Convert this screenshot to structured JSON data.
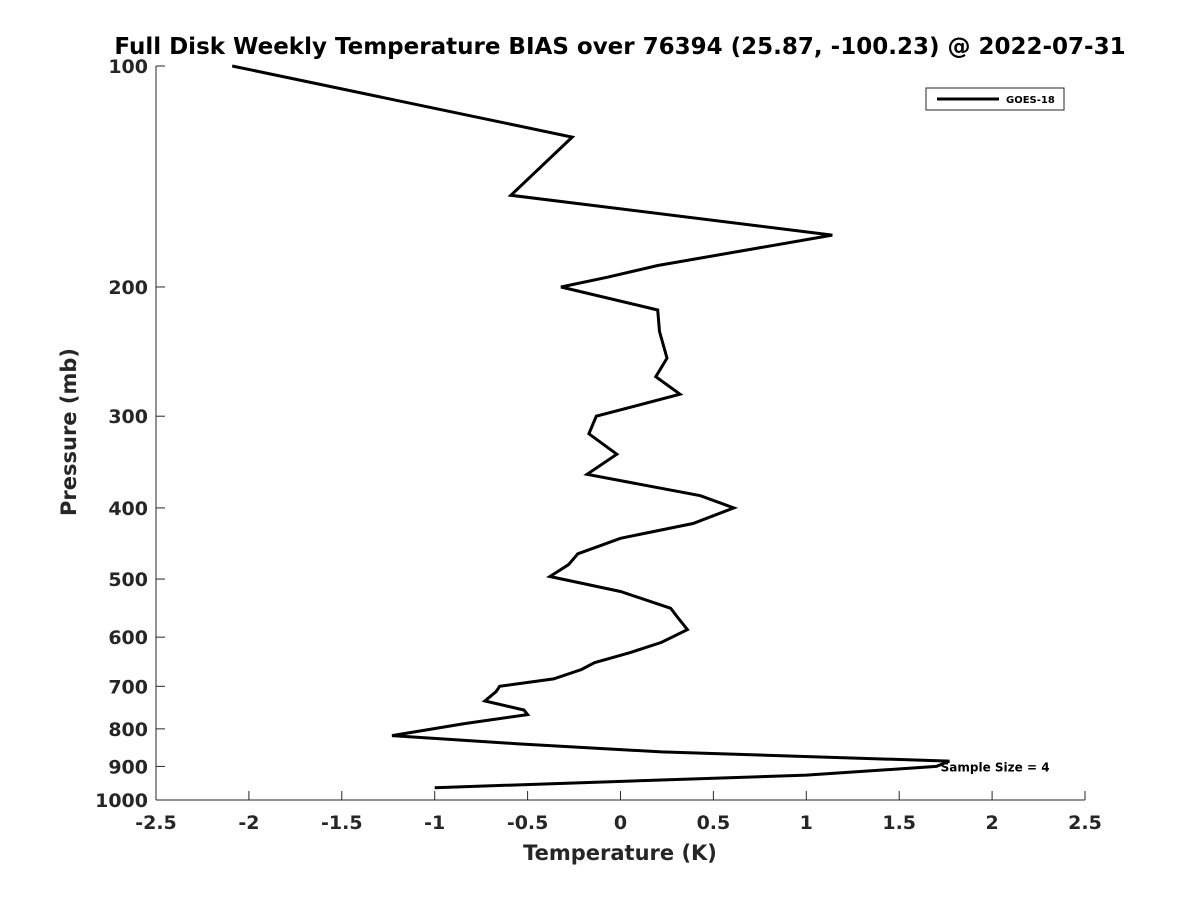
{
  "chart_data": {
    "type": "line",
    "title": "Full Disk Weekly Temperature BIAS over 76394 (25.87, -100.23) @ 2022-07-31",
    "xlabel": "Temperature (K)",
    "ylabel": "Pressure (mb)",
    "xlim": [
      -2.5,
      2.5
    ],
    "ylim": [
      1000,
      100
    ],
    "yscale": "log",
    "x_ticks": [
      -2.5,
      -2,
      -1.5,
      -1,
      -0.5,
      0,
      0.5,
      1,
      1.5,
      2,
      2.5
    ],
    "x_tick_labels": [
      "-2.5",
      "-2",
      "-1.5",
      "-1",
      "-0.5",
      "0",
      "0.5",
      "1",
      "1.5",
      "2",
      "2.5"
    ],
    "y_ticks": [
      100,
      200,
      300,
      400,
      500,
      600,
      700,
      800,
      900,
      1000
    ],
    "y_tick_labels": [
      "100",
      "200",
      "300",
      "400",
      "500",
      "600",
      "700",
      "800",
      "900",
      "1000"
    ],
    "grid": false,
    "legend_position": "top-right",
    "series": [
      {
        "name": "GOES-18",
        "color": "#000000",
        "points": [
          {
            "t": -2.09,
            "p": 100
          },
          {
            "t": -0.26,
            "p": 125
          },
          {
            "t": -0.59,
            "p": 150
          },
          {
            "t": 1.14,
            "p": 170
          },
          {
            "t": 0.2,
            "p": 187
          },
          {
            "t": -0.07,
            "p": 194
          },
          {
            "t": -0.32,
            "p": 200
          },
          {
            "t": 0.2,
            "p": 215
          },
          {
            "t": 0.21,
            "p": 230
          },
          {
            "t": 0.25,
            "p": 250
          },
          {
            "t": 0.19,
            "p": 265
          },
          {
            "t": 0.32,
            "p": 280
          },
          {
            "t": -0.13,
            "p": 300
          },
          {
            "t": -0.17,
            "p": 317
          },
          {
            "t": -0.02,
            "p": 338
          },
          {
            "t": -0.18,
            "p": 360
          },
          {
            "t": 0.43,
            "p": 385
          },
          {
            "t": 0.61,
            "p": 400
          },
          {
            "t": 0.39,
            "p": 420
          },
          {
            "t": 0.0,
            "p": 440
          },
          {
            "t": -0.23,
            "p": 462
          },
          {
            "t": -0.28,
            "p": 478
          },
          {
            "t": -0.38,
            "p": 496
          },
          {
            "t": 0.0,
            "p": 520
          },
          {
            "t": 0.27,
            "p": 548
          },
          {
            "t": 0.31,
            "p": 565
          },
          {
            "t": 0.36,
            "p": 586
          },
          {
            "t": 0.22,
            "p": 610
          },
          {
            "t": 0.05,
            "p": 630
          },
          {
            "t": -0.14,
            "p": 650
          },
          {
            "t": -0.21,
            "p": 664
          },
          {
            "t": -0.36,
            "p": 684
          },
          {
            "t": -0.65,
            "p": 700
          },
          {
            "t": -0.67,
            "p": 712
          },
          {
            "t": -0.73,
            "p": 733
          },
          {
            "t": -0.52,
            "p": 754
          },
          {
            "t": -0.5,
            "p": 765
          },
          {
            "t": -0.84,
            "p": 787
          },
          {
            "t": -1.23,
            "p": 817
          },
          {
            "t": -0.56,
            "p": 838
          },
          {
            "t": 0.22,
            "p": 860
          },
          {
            "t": 1.77,
            "p": 885
          },
          {
            "t": 1.7,
            "p": 900
          },
          {
            "t": 1.0,
            "p": 925
          },
          {
            "t": -1.0,
            "p": 962
          }
        ]
      }
    ],
    "legend": [
      {
        "label": "GOES-18",
        "color": "#000000"
      }
    ],
    "annotations": [
      {
        "text": "Sample Size = 4",
        "t": 1.75,
        "p": 900
      }
    ]
  }
}
